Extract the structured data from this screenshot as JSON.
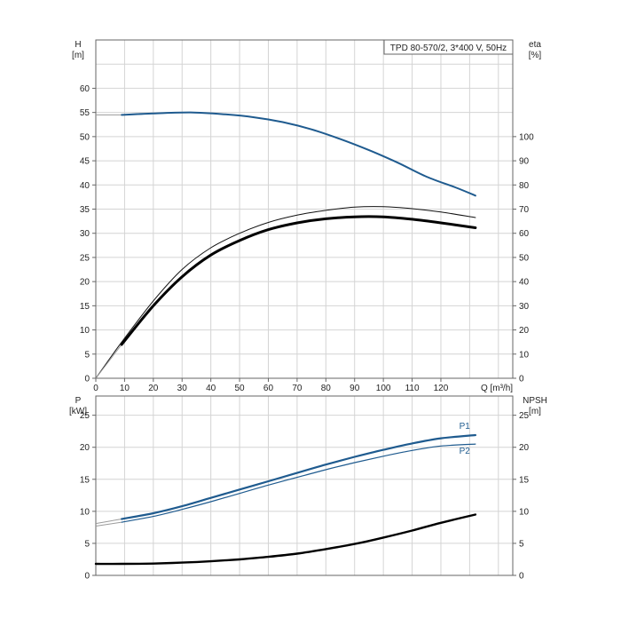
{
  "chart_data": [
    {
      "type": "line",
      "title": "TPD 80-570/2, 3*400 V, 50Hz",
      "left_axis": {
        "name": "H",
        "unit": "[m]",
        "ylim": [
          0,
          70
        ],
        "ticks": [
          0,
          5,
          10,
          15,
          20,
          25,
          30,
          35,
          40,
          45,
          50,
          55,
          60
        ]
      },
      "right_axis": {
        "name": "eta",
        "unit": "[%]",
        "ylim": [
          0,
          140
        ],
        "ticks": [
          0,
          10,
          20,
          30,
          40,
          50,
          60,
          70,
          80,
          90,
          100
        ]
      },
      "x_axis": {
        "name": "Q",
        "unit": "[m³/h]",
        "xlim": [
          0,
          145
        ],
        "ticks": [
          0,
          10,
          20,
          30,
          40,
          50,
          60,
          70,
          80,
          90,
          100,
          110,
          120
        ]
      },
      "grid": true,
      "series": [
        {
          "id": "head",
          "axis": "left",
          "color": "#1f5b8f",
          "width": 2,
          "points": [
            [
              9,
              54.5
            ],
            [
              20,
              54.8
            ],
            [
              33,
              55
            ],
            [
              45,
              54.6
            ],
            [
              55,
              54.0
            ],
            [
              65,
              53.0
            ],
            [
              75,
              51.5
            ],
            [
              85,
              49.5
            ],
            [
              95,
              47.2
            ],
            [
              105,
              44.6
            ],
            [
              115,
              41.7
            ],
            [
              125,
              39.5
            ],
            [
              132,
              37.8
            ]
          ],
          "extension": [
            [
              0,
              54.5
            ],
            [
              9,
              54.5
            ]
          ]
        },
        {
          "id": "eta-upper",
          "axis": "right",
          "color": "#111111",
          "width": 1,
          "points": [
            [
              0,
              0
            ],
            [
              9,
              15
            ],
            [
              20,
              32
            ],
            [
              30,
              45
            ],
            [
              40,
              54
            ],
            [
              50,
              60
            ],
            [
              60,
              64.5
            ],
            [
              70,
              67.5
            ],
            [
              80,
              69.5
            ],
            [
              90,
              70.8
            ],
            [
              100,
              71
            ],
            [
              110,
              70.2
            ],
            [
              120,
              68.8
            ],
            [
              132,
              66.5
            ]
          ]
        },
        {
          "id": "eta-lower",
          "axis": "right",
          "color": "#000000",
          "width": 3,
          "points": [
            [
              9,
              14
            ],
            [
              20,
              30
            ],
            [
              30,
              42
            ],
            [
              40,
              51
            ],
            [
              50,
              57
            ],
            [
              60,
              61.5
            ],
            [
              70,
              64.3
            ],
            [
              80,
              66
            ],
            [
              90,
              66.8
            ],
            [
              100,
              66.8
            ],
            [
              110,
              65.8
            ],
            [
              120,
              64.3
            ],
            [
              132,
              62.3
            ]
          ],
          "extension": [
            [
              0,
              0
            ],
            [
              9,
              14
            ]
          ]
        }
      ]
    },
    {
      "type": "line",
      "left_axis": {
        "name": "P",
        "unit": "[kW]",
        "ylim": [
          0,
          28
        ],
        "ticks": [
          0,
          5,
          10,
          15,
          20,
          25
        ]
      },
      "right_axis": {
        "name": "NPSH",
        "unit": "[m]",
        "ylim": [
          0,
          28
        ],
        "ticks": [
          0,
          5,
          10,
          15,
          20,
          25
        ]
      },
      "x_axis": {
        "xlim": [
          0,
          145
        ]
      },
      "grid": true,
      "series": [
        {
          "id": "P1",
          "name": "P1",
          "axis": "left",
          "color": "#1f5b8f",
          "width": 2.2,
          "points": [
            [
              9,
              8.8
            ],
            [
              20,
              9.7
            ],
            [
              30,
              10.8
            ],
            [
              40,
              12.1
            ],
            [
              50,
              13.4
            ],
            [
              60,
              14.7
            ],
            [
              70,
              16.0
            ],
            [
              80,
              17.3
            ],
            [
              90,
              18.5
            ],
            [
              100,
              19.6
            ],
            [
              110,
              20.6
            ],
            [
              120,
              21.4
            ],
            [
              132,
              21.9
            ]
          ],
          "extension": [
            [
              0,
              8.1
            ],
            [
              9,
              8.8
            ]
          ]
        },
        {
          "id": "P2",
          "name": "P2",
          "axis": "left",
          "color": "#1f5b8f",
          "width": 1.2,
          "points": [
            [
              9,
              8.3
            ],
            [
              20,
              9.2
            ],
            [
              30,
              10.3
            ],
            [
              40,
              11.5
            ],
            [
              50,
              12.8
            ],
            [
              60,
              14.1
            ],
            [
              70,
              15.3
            ],
            [
              80,
              16.5
            ],
            [
              90,
              17.6
            ],
            [
              100,
              18.6
            ],
            [
              110,
              19.5
            ],
            [
              120,
              20.2
            ],
            [
              132,
              20.5
            ]
          ],
          "extension": [
            [
              0,
              7.7
            ],
            [
              9,
              8.3
            ]
          ]
        },
        {
          "id": "NPSH",
          "axis": "right",
          "color": "#000000",
          "width": 2.4,
          "points": [
            [
              0,
              1.8
            ],
            [
              9,
              1.8
            ],
            [
              20,
              1.85
            ],
            [
              30,
              2.0
            ],
            [
              40,
              2.2
            ],
            [
              50,
              2.5
            ],
            [
              60,
              2.9
            ],
            [
              70,
              3.4
            ],
            [
              80,
              4.1
            ],
            [
              90,
              4.9
            ],
            [
              100,
              5.9
            ],
            [
              110,
              7.0
            ],
            [
              120,
              8.2
            ],
            [
              132,
              9.5
            ]
          ]
        }
      ]
    }
  ]
}
